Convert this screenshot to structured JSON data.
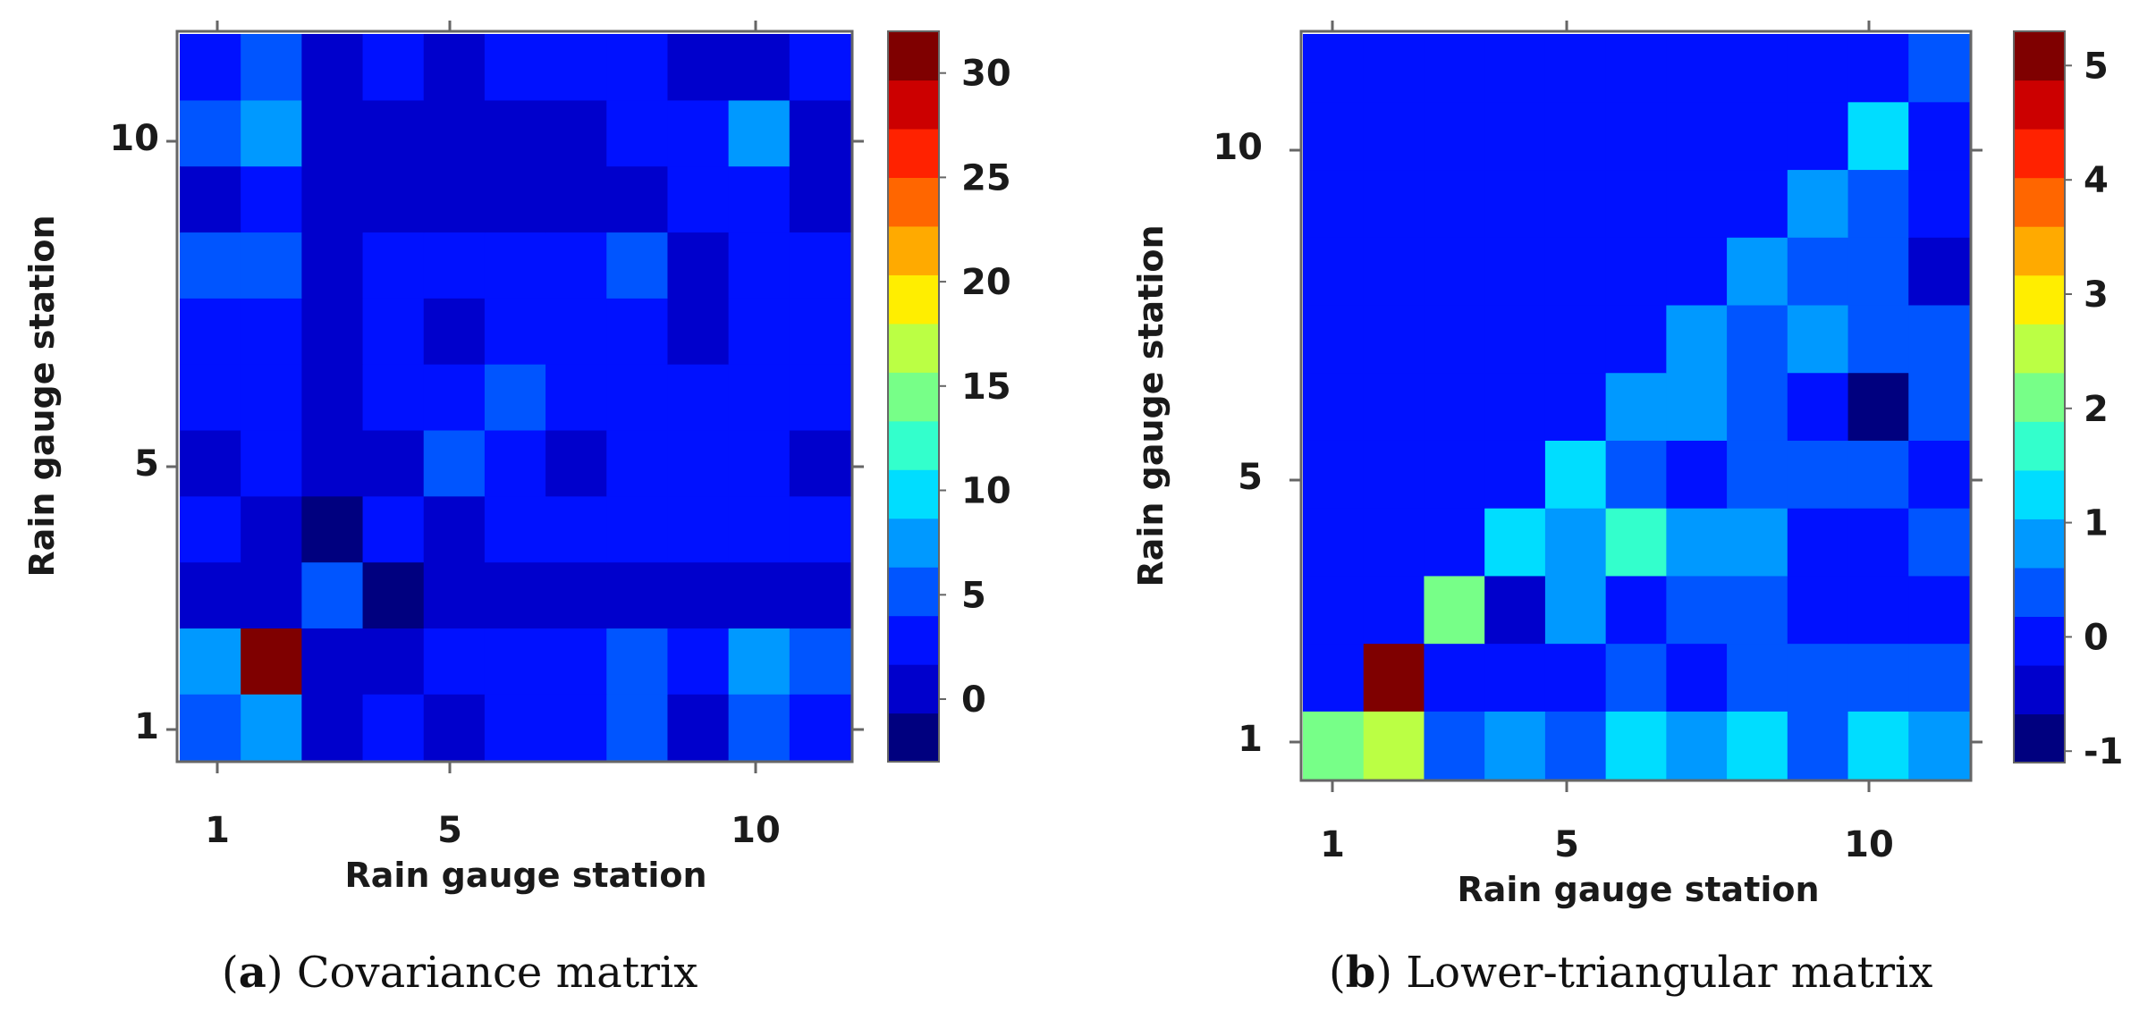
{
  "chart_data": [
    {
      "type": "heatmap",
      "panel": "a",
      "caption_letter": "a",
      "caption_text": "Covariance matrix",
      "xlabel": "Rain gauge station",
      "ylabel": "Rain gauge station",
      "x_ticks": [
        "1",
        "5",
        "10"
      ],
      "y_ticks": [
        "1",
        "5",
        "10"
      ],
      "rows": 11,
      "cols": 11,
      "matrix_rows_from_bottom": [
        [
          6,
          8,
          1,
          3,
          1,
          3,
          3,
          5,
          1,
          6,
          3
        ],
        [
          7,
          31,
          1,
          1,
          3,
          3,
          3,
          5,
          3,
          7,
          6
        ],
        [
          1,
          1,
          5,
          -2,
          1,
          1,
          1,
          1,
          1,
          1,
          1
        ],
        [
          3,
          1,
          -3,
          3,
          1,
          3,
          3,
          3,
          3,
          3,
          3
        ],
        [
          1,
          3,
          1,
          1,
          5,
          3,
          1,
          3,
          3,
          3,
          1
        ],
        [
          3,
          3,
          1,
          3,
          3,
          5,
          3,
          3,
          3,
          3,
          3
        ],
        [
          3,
          3,
          1,
          3,
          1,
          3,
          3,
          3,
          1,
          3,
          3
        ],
        [
          5,
          5,
          1,
          3,
          3,
          3,
          3,
          5,
          1,
          3,
          3
        ],
        [
          1,
          3,
          1,
          1,
          1,
          1,
          1,
          1,
          3,
          3,
          1
        ],
        [
          5,
          8,
          1,
          1,
          1,
          1,
          1,
          3,
          3,
          8,
          1
        ],
        [
          3,
          5,
          1,
          3,
          1,
          3,
          3,
          3,
          1,
          1,
          3
        ]
      ],
      "colorbar": {
        "min": -3,
        "max": 32,
        "ticks": [
          "0",
          "5",
          "10",
          "15",
          "20",
          "25",
          "30"
        ]
      }
    },
    {
      "type": "heatmap",
      "panel": "b",
      "caption_letter": "b",
      "caption_text": "Lower-triangular matrix",
      "xlabel": "Rain gauge station",
      "ylabel": "Rain gauge station",
      "x_ticks": [
        "1",
        "5",
        "10"
      ],
      "y_ticks": [
        "1",
        "5",
        "10"
      ],
      "rows": 11,
      "cols": 11,
      "matrix_rows_from_bottom": [
        [
          2.1,
          2.6,
          0.3,
          0.7,
          0.4,
          1.1,
          0.8,
          1.3,
          0.4,
          1.2,
          0.8
        ],
        [
          0,
          5.0,
          0,
          0,
          0,
          0.4,
          0.1,
          0.3,
          0.4,
          0.6,
          0.3
        ],
        [
          0,
          0,
          2.0,
          -0.3,
          0.7,
          0,
          0.3,
          0.3,
          0,
          0,
          0
        ],
        [
          0,
          0,
          0,
          1.2,
          1.0,
          1.7,
          0.7,
          0.7,
          0,
          0,
          0.6
        ],
        [
          0,
          0,
          0,
          0,
          1.2,
          0.6,
          0,
          0.4,
          0.6,
          0.4,
          0
        ],
        [
          0,
          0,
          0,
          0,
          0,
          1.0,
          1.0,
          0.2,
          -0.1,
          -0.7,
          0.6
        ],
        [
          0,
          0,
          0,
          0,
          0,
          0,
          1.0,
          0.2,
          1.0,
          0.2,
          0.2
        ],
        [
          0,
          0,
          0,
          0,
          0,
          0,
          0,
          1.0,
          0.3,
          0.3,
          -0.4
        ],
        [
          0,
          0,
          0,
          0,
          0,
          0,
          0,
          0,
          1.0,
          0.2,
          0
        ],
        [
          0,
          0,
          0,
          0,
          0,
          0,
          0,
          0,
          0,
          1.2,
          0
        ],
        [
          0,
          0,
          0,
          0,
          0,
          0,
          0,
          0,
          0,
          0,
          0.6
        ]
      ],
      "colorbar": {
        "min": -1.1,
        "max": 5.3,
        "ticks": [
          "-1",
          "0",
          "1",
          "2",
          "3",
          "4",
          "5"
        ]
      }
    }
  ],
  "jet_colors": [
    "#00007f",
    "#0000cc",
    "#0011ff",
    "#0055ff",
    "#0099ff",
    "#00ddff",
    "#33ffcc",
    "#77ff88",
    "#bbff44",
    "#ffee00",
    "#ffaa00",
    "#ff6600",
    "#ff2200",
    "#cc0000",
    "#7f0000"
  ]
}
